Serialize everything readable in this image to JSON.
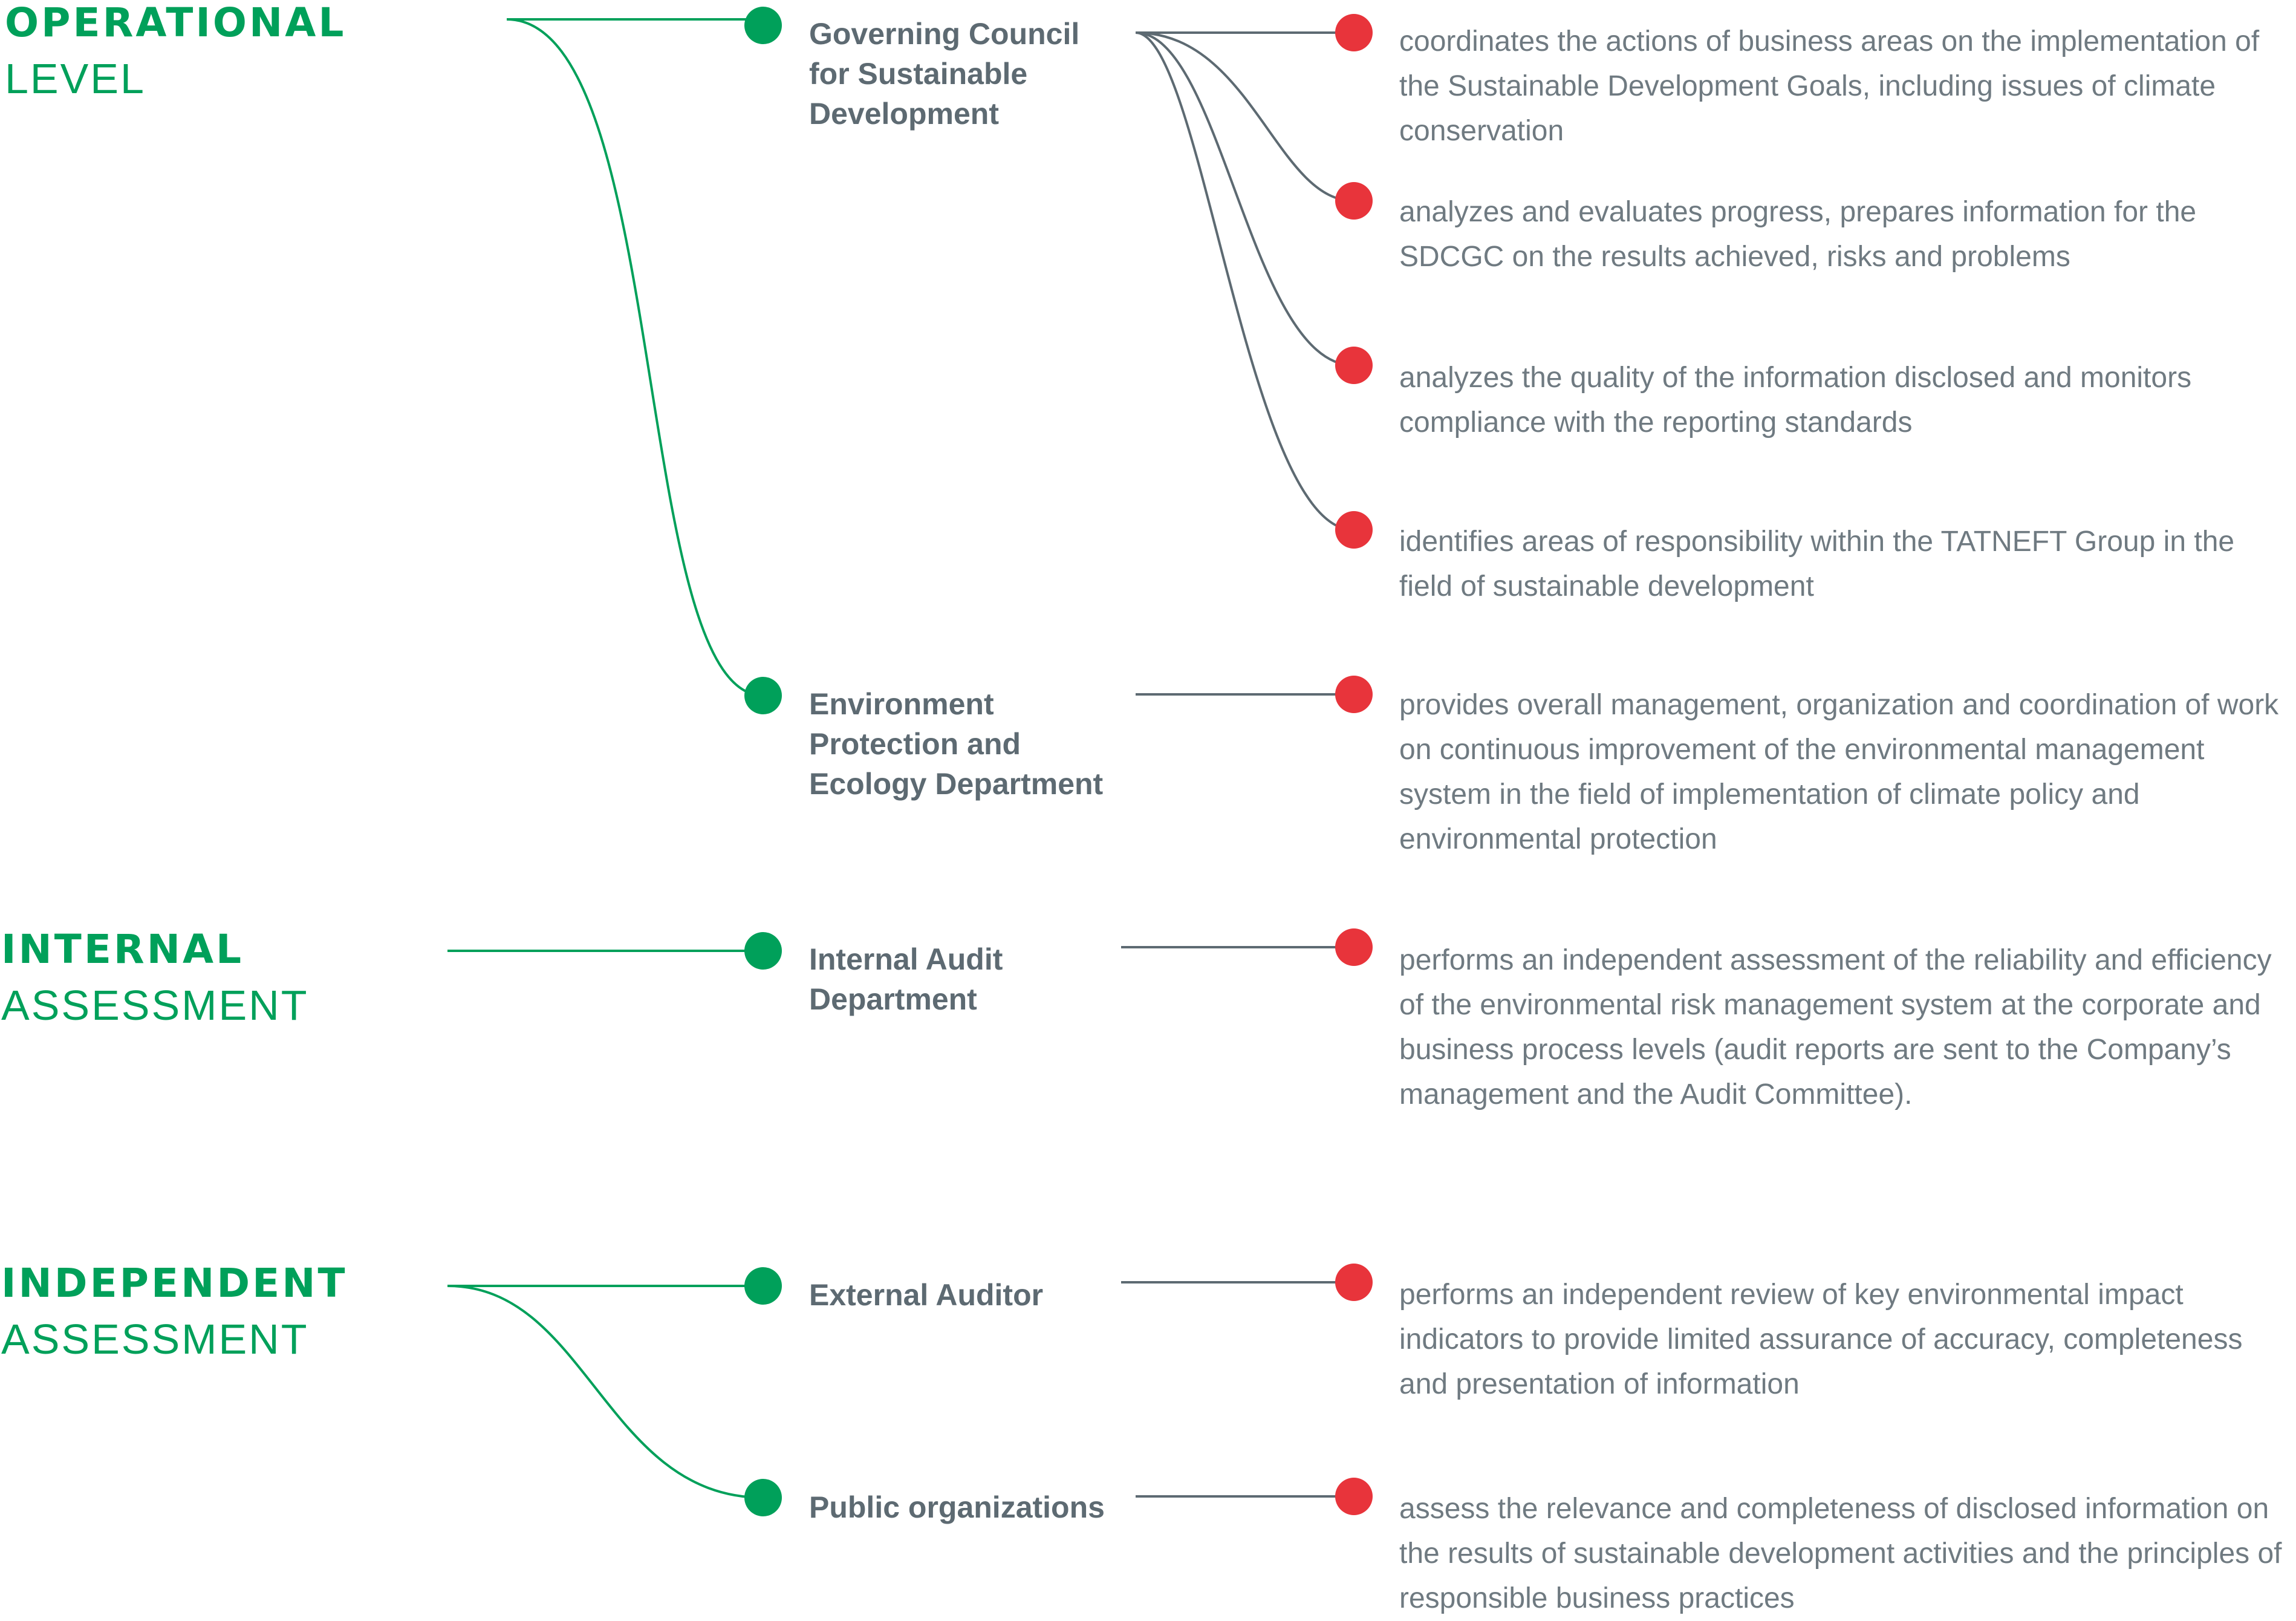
{
  "colors": {
    "level_green": "#00a05a",
    "body_text": "#5d6a72",
    "function_text": "#6f7a81",
    "dot_green": "#00a05a",
    "dot_red": "#e8343b",
    "connector_grey": "#5d6a72"
  },
  "levels": [
    {
      "line1": "OPERATIONAL",
      "line2": "LEVEL"
    },
    {
      "line1": "INTERNAL",
      "line2": "ASSESSMENT"
    },
    {
      "line1": "INDEPENDENT",
      "line2": "ASSESSMENT"
    }
  ],
  "bodies": [
    {
      "name": "Governing Council for Sustainable Development",
      "level": "OPERATIONAL LEVEL"
    },
    {
      "name": "Environment Protection and Ecology Department",
      "level": "OPERATIONAL LEVEL"
    },
    {
      "name": "Internal Audit Department",
      "level": "INTERNAL ASSESSMENT"
    },
    {
      "name": "External Auditor",
      "level": "INDEPENDENT ASSESSMENT"
    },
    {
      "name": "Public organizations",
      "level": "INDEPENDENT ASSESSMENT"
    }
  ],
  "functions": [
    {
      "text": "coordinates the actions of business areas on the implementation of the Sustainable Development Goals, including issues of climate conservation",
      "body": "Governing Council for Sustainable Development"
    },
    {
      "text": "analyzes and evaluates progress, prepares information for the SDCGC on the results achieved, risks and problems",
      "body": "Governing Council for Sustainable Development"
    },
    {
      "text": "analyzes the quality of the information disclosed and monitors compliance with the reporting standards",
      "body": "Governing Council for Sustainable Development"
    },
    {
      "text": "identifies areas of responsibility within the TATNEFT Group in the field of sustainable development",
      "body": "Governing Council for Sustainable Development"
    },
    {
      "text": "provides overall management, organization and coordination of work on continuous improvement of the environmental management system in the field of implementation of climate policy and environmental protection",
      "body": "Environment Protection and Ecology Department"
    },
    {
      "text": "performs an independent assessment of the reliability and efficiency of the environmental risk management system at the corporate and business process levels (audit reports are sent to the Company’s management and the Audit Committee).",
      "body": "Internal Audit Department"
    },
    {
      "text": "performs an independent review of key environmental impact indicators to provide limited assurance of accuracy, completeness and presentation of information",
      "body": "External Auditor"
    },
    {
      "text": "assess the relevance and completeness of disclosed information on the results of sustainable development activities and the principles of responsible business practices",
      "body": "Public organizations"
    }
  ]
}
